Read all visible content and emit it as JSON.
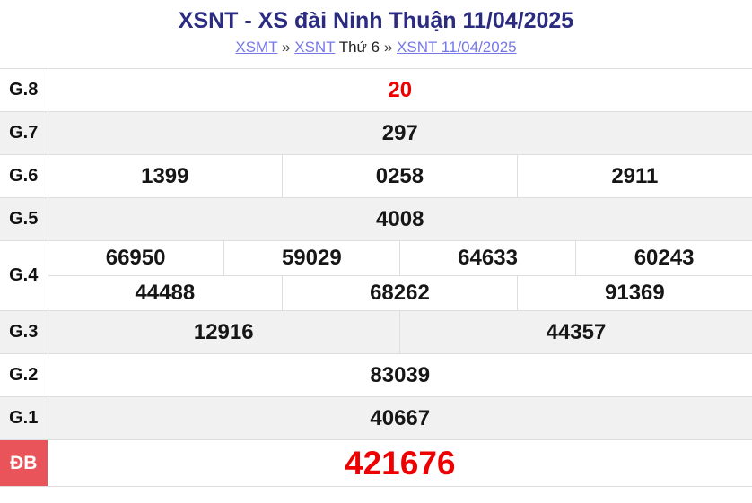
{
  "header": {
    "title": "XSNT - XS đài Ninh Thuận 11/04/2025",
    "breadcrumb": [
      {
        "label": "XSMT",
        "type": "link"
      },
      {
        "label": "»",
        "type": "sep"
      },
      {
        "label": "XSNT",
        "type": "link"
      },
      {
        "label": "Thứ 6",
        "type": "text"
      },
      {
        "label": "»",
        "type": "sep"
      },
      {
        "label": "XSNT 11/04/2025",
        "type": "link"
      }
    ]
  },
  "colors": {
    "title_text": "#2b2b80",
    "breadcrumb_link": "#7678e8",
    "value_red": "#ee0000",
    "special_label_bg": "#e8545a",
    "row_alt_bg": "#f1f1f2",
    "border": "#dedede"
  },
  "table": {
    "rows": [
      {
        "label": "G.8",
        "shaded": false,
        "highlight": "red",
        "sub_rows": [
          [
            "20"
          ]
        ]
      },
      {
        "label": "G.7",
        "shaded": true,
        "sub_rows": [
          [
            "297"
          ]
        ]
      },
      {
        "label": "G.6",
        "shaded": false,
        "sub_rows": [
          [
            "1399",
            "0258",
            "2911"
          ]
        ]
      },
      {
        "label": "G.5",
        "shaded": true,
        "sub_rows": [
          [
            "4008"
          ]
        ]
      },
      {
        "label": "G.4",
        "shaded": false,
        "sub_rows": [
          [
            "66950",
            "59029",
            "64633",
            "60243"
          ],
          [
            "44488",
            "68262",
            "91369"
          ]
        ]
      },
      {
        "label": "G.3",
        "shaded": true,
        "sub_rows": [
          [
            "12916",
            "44357"
          ]
        ]
      },
      {
        "label": "G.2",
        "shaded": false,
        "sub_rows": [
          [
            "83039"
          ]
        ]
      },
      {
        "label": "G.1",
        "shaded": true,
        "sub_rows": [
          [
            "40667"
          ]
        ]
      },
      {
        "label": "ĐB",
        "shaded": false,
        "special": true,
        "sub_rows": [
          [
            "421676"
          ]
        ]
      }
    ]
  }
}
